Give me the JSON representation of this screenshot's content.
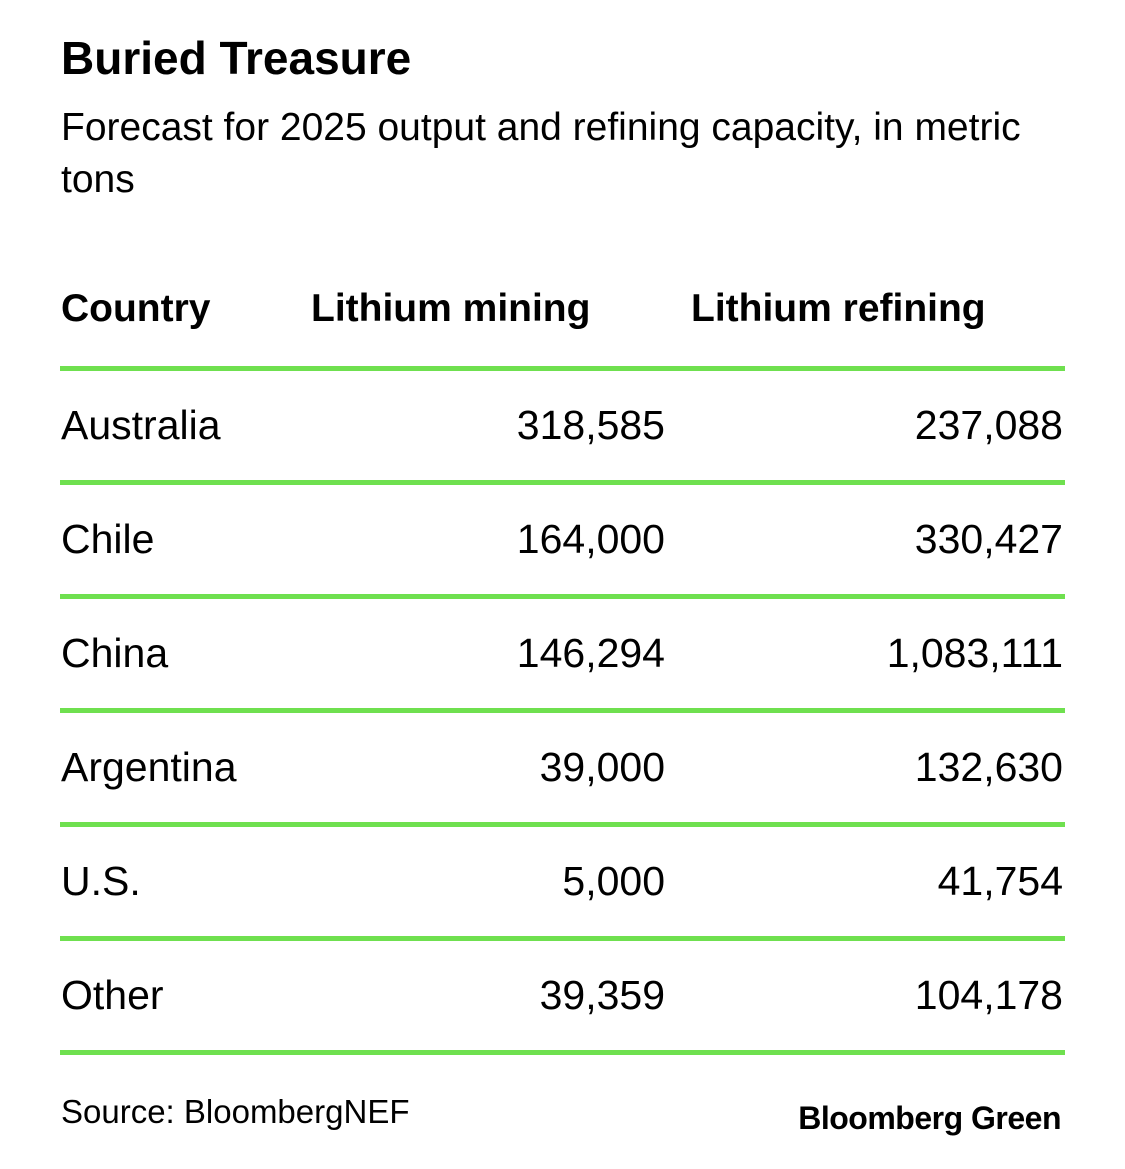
{
  "chart_data": {
    "type": "table",
    "title": "Buried Treasure",
    "subtitle": "Forecast for 2025 output and refining capacity, in metric tons",
    "columns": [
      "Country",
      "Lithium mining",
      "Lithium refining"
    ],
    "rows": [
      [
        "Australia",
        "318,585",
        "237,088"
      ],
      [
        "Chile",
        "164,000",
        "330,427"
      ],
      [
        "China",
        "146,294",
        "1,083,111"
      ],
      [
        "Argentina",
        "39,000",
        "132,630"
      ],
      [
        "U.S.",
        "5,000",
        "41,754"
      ],
      [
        "Other",
        "39,359",
        "104,178"
      ]
    ],
    "source": "Source: BloombergNEF",
    "brand": "Bloomberg Green",
    "colors": {
      "rule": "#6fe04f",
      "text": "#000000",
      "background": "#ffffff"
    }
  }
}
